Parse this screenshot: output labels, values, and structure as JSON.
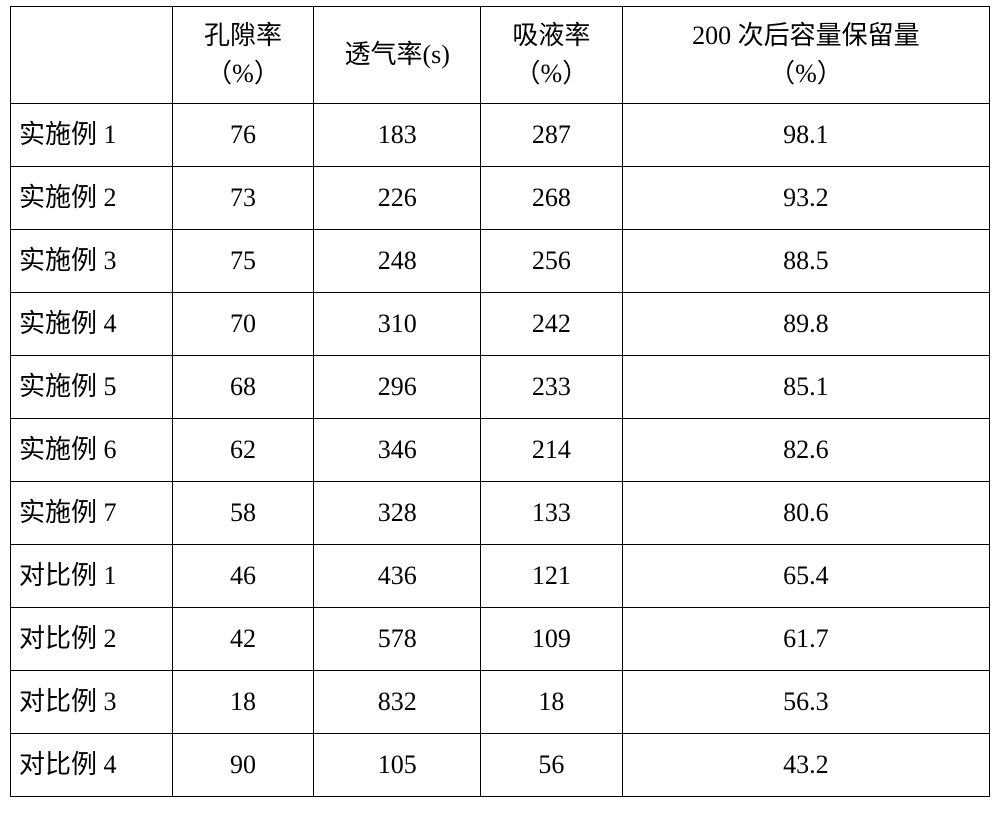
{
  "table": {
    "columns": [
      {
        "key": "label",
        "header": "",
        "twoLine": false
      },
      {
        "key": "porosity",
        "header_l1": "孔隙率",
        "header_l2": "（%）",
        "twoLine": true
      },
      {
        "key": "permeability",
        "header_l1": "透气率(s)",
        "twoLine": false
      },
      {
        "key": "absorption",
        "header_l1": "吸液率",
        "header_l2": "（%）",
        "twoLine": true
      },
      {
        "key": "retention",
        "header_l1": "200 次后容量保留量",
        "header_l2": "（%）",
        "twoLine": true
      }
    ],
    "rows": [
      {
        "label": "实施例 1",
        "porosity": "76",
        "permeability": "183",
        "absorption": "287",
        "retention": "98.1"
      },
      {
        "label": "实施例 2",
        "porosity": "73",
        "permeability": "226",
        "absorption": "268",
        "retention": "93.2"
      },
      {
        "label": "实施例 3",
        "porosity": "75",
        "permeability": "248",
        "absorption": "256",
        "retention": "88.5"
      },
      {
        "label": "实施例 4",
        "porosity": "70",
        "permeability": "310",
        "absorption": "242",
        "retention": "89.8"
      },
      {
        "label": "实施例 5",
        "porosity": "68",
        "permeability": "296",
        "absorption": "233",
        "retention": "85.1"
      },
      {
        "label": "实施例 6",
        "porosity": "62",
        "permeability": "346",
        "absorption": "214",
        "retention": "82.6"
      },
      {
        "label": "实施例 7",
        "porosity": "58",
        "permeability": "328",
        "absorption": "133",
        "retention": "80.6"
      },
      {
        "label": "对比例 1",
        "porosity": "46",
        "permeability": "436",
        "absorption": "121",
        "retention": "65.4"
      },
      {
        "label": "对比例 2",
        "porosity": "42",
        "permeability": "578",
        "absorption": "109",
        "retention": "61.7"
      },
      {
        "label": "对比例 3",
        "porosity": "18",
        "permeability": "832",
        "absorption": "18",
        "retention": "56.3"
      },
      {
        "label": "对比例 4",
        "porosity": "90",
        "permeability": "105",
        "absorption": "56",
        "retention": "43.2"
      }
    ],
    "colors": {
      "border": "#000000",
      "background": "#ffffff",
      "text": "#000000"
    },
    "font": {
      "family": "SimSun",
      "size_pt": 20
    }
  }
}
